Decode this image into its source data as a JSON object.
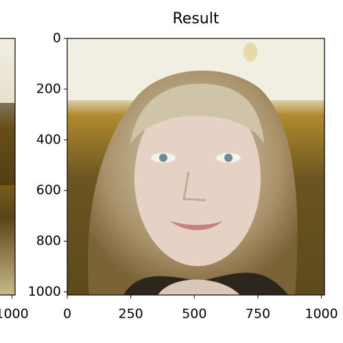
{
  "chart_data": [
    {
      "type": "image",
      "xlim": [
        0,
        1012
      ],
      "ylim": [
        1012,
        0
      ],
      "xticks": [
        1000
      ]
    },
    {
      "type": "image",
      "title": "Result",
      "xlim": [
        0,
        1012
      ],
      "ylim": [
        1012,
        0
      ],
      "xticks": [
        0,
        250,
        500,
        750,
        1000
      ],
      "yticks": [
        0,
        200,
        400,
        600,
        800,
        1000
      ]
    }
  ]
}
